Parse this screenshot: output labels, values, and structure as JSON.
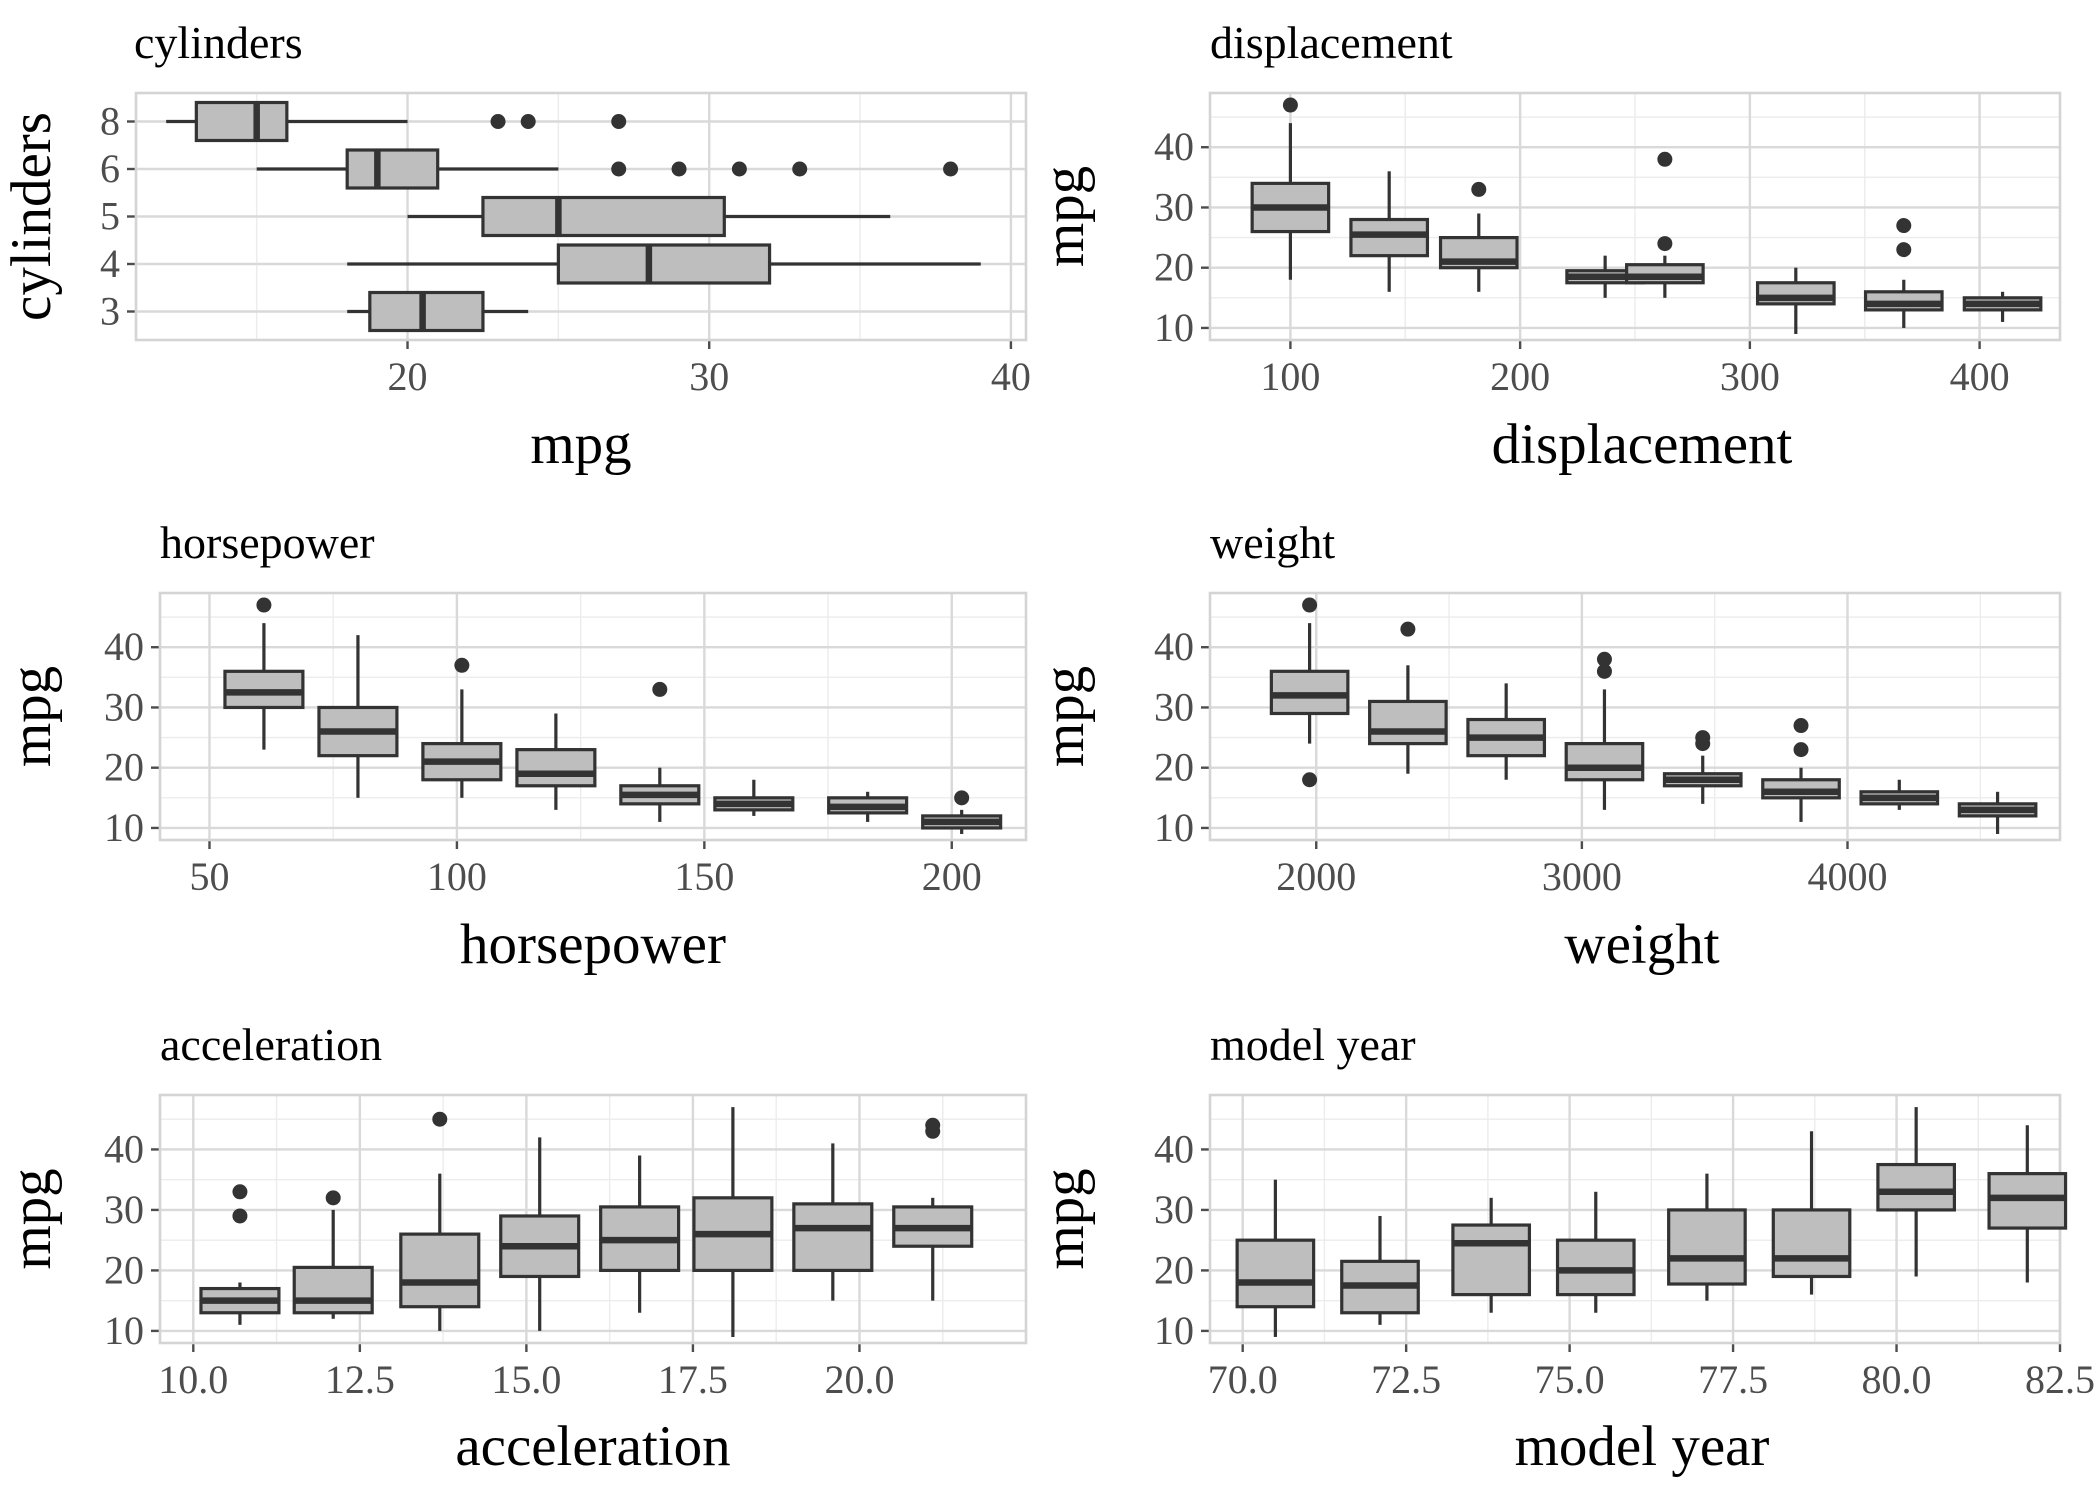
{
  "chart_data": [
    {
      "type": "boxplot",
      "orientation": "horizontal",
      "title": "cylinders",
      "xlabel": "mpg",
      "ylabel": "cylinders",
      "xlim": [
        11,
        40.5
      ],
      "xticks": [
        20,
        30,
        40
      ],
      "categories": [
        "3",
        "4",
        "5",
        "6",
        "8"
      ],
      "boxes": [
        {
          "category": "3",
          "min": 18,
          "q1": 18.75,
          "median": 20.5,
          "q3": 22.5,
          "max": 24,
          "outliers": []
        },
        {
          "category": "4",
          "min": 18,
          "q1": 25,
          "median": 28,
          "q3": 32,
          "max": 39,
          "outliers": []
        },
        {
          "category": "5",
          "min": 20,
          "q1": 22.5,
          "median": 25,
          "q3": 30.5,
          "max": 36,
          "outliers": []
        },
        {
          "category": "6",
          "min": 15,
          "q1": 18,
          "median": 19,
          "q3": 21,
          "max": 25,
          "outliers": [
            27,
            29,
            31,
            33,
            38
          ]
        },
        {
          "category": "8",
          "min": 12,
          "q1": 13,
          "median": 15,
          "q3": 16,
          "max": 20,
          "outliers": [
            23,
            24,
            27
          ]
        }
      ]
    },
    {
      "type": "boxplot",
      "title": "displacement",
      "xlabel": "displacement",
      "ylabel": "mpg",
      "xlim": [
        65,
        435
      ],
      "xticks": [
        100,
        200,
        300,
        400
      ],
      "ylim": [
        8,
        49
      ],
      "yticks": [
        10,
        20,
        30,
        40
      ],
      "boxes": [
        {
          "x": 100,
          "min": 18,
          "q1": 26,
          "median": 30,
          "q3": 34,
          "max": 44,
          "outliers": [
            47
          ]
        },
        {
          "x": 143,
          "min": 16,
          "q1": 22,
          "median": 25.5,
          "q3": 28,
          "max": 36,
          "outliers": []
        },
        {
          "x": 182,
          "min": 16,
          "q1": 20,
          "median": 21,
          "q3": 25,
          "max": 29,
          "outliers": [
            33
          ]
        },
        {
          "x": 237,
          "min": 15,
          "q1": 17.5,
          "median": 18.5,
          "q3": 19.5,
          "max": 22,
          "outliers": []
        },
        {
          "x": 263,
          "min": 15,
          "q1": 17.5,
          "median": 18.5,
          "q3": 20.5,
          "max": 22,
          "outliers": [
            24,
            38
          ]
        },
        {
          "x": 320,
          "min": 9,
          "q1": 14,
          "median": 15,
          "q3": 17.5,
          "max": 20,
          "outliers": []
        },
        {
          "x": 367,
          "min": 10,
          "q1": 13,
          "median": 14,
          "q3": 16,
          "max": 18,
          "outliers": [
            23,
            27
          ]
        },
        {
          "x": 410,
          "min": 11,
          "q1": 13,
          "median": 14,
          "q3": 15,
          "max": 16,
          "outliers": []
        }
      ]
    },
    {
      "type": "boxplot",
      "title": "horsepower",
      "xlabel": "horsepower",
      "ylabel": "mpg",
      "xlim": [
        40,
        215
      ],
      "xticks": [
        50,
        100,
        150,
        200
      ],
      "ylim": [
        8,
        49
      ],
      "yticks": [
        10,
        20,
        30,
        40
      ],
      "boxes": [
        {
          "x": 61,
          "min": 23,
          "q1": 30,
          "median": 32.5,
          "q3": 36,
          "max": 44,
          "outliers": [
            47
          ]
        },
        {
          "x": 80,
          "min": 15,
          "q1": 22,
          "median": 26,
          "q3": 30,
          "max": 42,
          "outliers": []
        },
        {
          "x": 101,
          "min": 15,
          "q1": 18,
          "median": 21,
          "q3": 24,
          "max": 33,
          "outliers": [
            37
          ]
        },
        {
          "x": 120,
          "min": 13,
          "q1": 17,
          "median": 19,
          "q3": 23,
          "max": 29,
          "outliers": []
        },
        {
          "x": 141,
          "min": 11,
          "q1": 14,
          "median": 15.5,
          "q3": 17,
          "max": 20,
          "outliers": [
            33
          ]
        },
        {
          "x": 160,
          "min": 12,
          "q1": 13,
          "median": 14,
          "q3": 15,
          "max": 18,
          "outliers": []
        },
        {
          "x": 183,
          "min": 11,
          "q1": 12.5,
          "median": 13.5,
          "q3": 15,
          "max": 16,
          "outliers": []
        },
        {
          "x": 202,
          "min": 9,
          "q1": 10,
          "median": 11,
          "q3": 12,
          "max": 13,
          "outliers": [
            15
          ]
        }
      ]
    },
    {
      "type": "boxplot",
      "title": "weight",
      "xlabel": "weight",
      "ylabel": "mpg",
      "xlim": [
        1600,
        4800
      ],
      "xticks": [
        2000,
        3000,
        4000
      ],
      "ylim": [
        8,
        49
      ],
      "yticks": [
        10,
        20,
        30,
        40
      ],
      "boxes": [
        {
          "x": 1975,
          "min": 24,
          "q1": 29,
          "median": 32,
          "q3": 36,
          "max": 44,
          "outliers": [
            18,
            47
          ]
        },
        {
          "x": 2345,
          "min": 19,
          "q1": 24,
          "median": 26,
          "q3": 31,
          "max": 37,
          "outliers": [
            43
          ]
        },
        {
          "x": 2715,
          "min": 18,
          "q1": 22,
          "median": 25,
          "q3": 28,
          "max": 34,
          "outliers": []
        },
        {
          "x": 3085,
          "min": 13,
          "q1": 18,
          "median": 20,
          "q3": 24,
          "max": 33,
          "outliers": [
            36,
            38
          ]
        },
        {
          "x": 3455,
          "min": 14,
          "q1": 17,
          "median": 18,
          "q3": 19,
          "max": 22,
          "outliers": [
            24,
            25
          ]
        },
        {
          "x": 3825,
          "min": 11,
          "q1": 15,
          "median": 16,
          "q3": 18,
          "max": 20,
          "outliers": [
            23,
            27
          ]
        },
        {
          "x": 4195,
          "min": 13,
          "q1": 14,
          "median": 15,
          "q3": 16,
          "max": 18,
          "outliers": []
        },
        {
          "x": 4565,
          "min": 9,
          "q1": 12,
          "median": 13,
          "q3": 14,
          "max": 16,
          "outliers": []
        }
      ]
    },
    {
      "type": "boxplot",
      "title": "acceleration",
      "xlabel": "acceleration",
      "ylabel": "mpg",
      "xlim": [
        9.5,
        22.5
      ],
      "xticks": [
        10.0,
        12.5,
        15.0,
        17.5,
        20.0
      ],
      "ylim": [
        8,
        49
      ],
      "yticks": [
        10,
        20,
        30,
        40
      ],
      "boxes": [
        {
          "x": 10.7,
          "min": 11,
          "q1": 13,
          "median": 15,
          "q3": 17,
          "max": 18,
          "outliers": [
            29,
            33
          ]
        },
        {
          "x": 12.1,
          "min": 12,
          "q1": 13,
          "median": 15,
          "q3": 20.5,
          "max": 30,
          "outliers": [
            32
          ]
        },
        {
          "x": 13.7,
          "min": 10,
          "q1": 14,
          "median": 18,
          "q3": 26,
          "max": 36,
          "outliers": [
            45
          ]
        },
        {
          "x": 15.2,
          "min": 10,
          "q1": 19,
          "median": 24,
          "q3": 29,
          "max": 42,
          "outliers": []
        },
        {
          "x": 16.7,
          "min": 13,
          "q1": 20,
          "median": 25,
          "q3": 30.5,
          "max": 39,
          "outliers": []
        },
        {
          "x": 18.1,
          "min": 9,
          "q1": 20,
          "median": 26,
          "q3": 32,
          "max": 47,
          "outliers": []
        },
        {
          "x": 19.6,
          "min": 15,
          "q1": 20,
          "median": 27,
          "q3": 31,
          "max": 41,
          "outliers": []
        },
        {
          "x": 21.1,
          "min": 15,
          "q1": 24,
          "median": 27,
          "q3": 30.5,
          "max": 32,
          "outliers": [
            43,
            44
          ]
        }
      ]
    },
    {
      "type": "boxplot",
      "title": "model year",
      "xlabel": "model year",
      "ylabel": "mpg",
      "xlim": [
        69.5,
        82.5
      ],
      "xticks": [
        70.0,
        72.5,
        75.0,
        77.5,
        80.0,
        82.5
      ],
      "ylim": [
        8,
        49
      ],
      "yticks": [
        10,
        20,
        30,
        40
      ],
      "boxes": [
        {
          "x": 70.5,
          "min": 9,
          "q1": 14,
          "median": 18,
          "q3": 25,
          "max": 35,
          "outliers": []
        },
        {
          "x": 72.1,
          "min": 11,
          "q1": 13,
          "median": 17.5,
          "q3": 21.5,
          "max": 29,
          "outliers": []
        },
        {
          "x": 73.8,
          "min": 13,
          "q1": 16,
          "median": 24.5,
          "q3": 27.5,
          "max": 32,
          "outliers": []
        },
        {
          "x": 75.4,
          "min": 13,
          "q1": 16,
          "median": 20,
          "q3": 25,
          "max": 33,
          "outliers": []
        },
        {
          "x": 77.1,
          "min": 15,
          "q1": 17.75,
          "median": 22,
          "q3": 30,
          "max": 36,
          "outliers": []
        },
        {
          "x": 78.7,
          "min": 16,
          "q1": 19,
          "median": 22,
          "q3": 30,
          "max": 43,
          "outliers": []
        },
        {
          "x": 80.3,
          "min": 19,
          "q1": 30,
          "median": 33,
          "q3": 37.5,
          "max": 47,
          "outliers": []
        },
        {
          "x": 82.0,
          "min": 18,
          "q1": 27,
          "median": 32,
          "q3": 36,
          "max": 44,
          "outliers": []
        }
      ]
    }
  ]
}
